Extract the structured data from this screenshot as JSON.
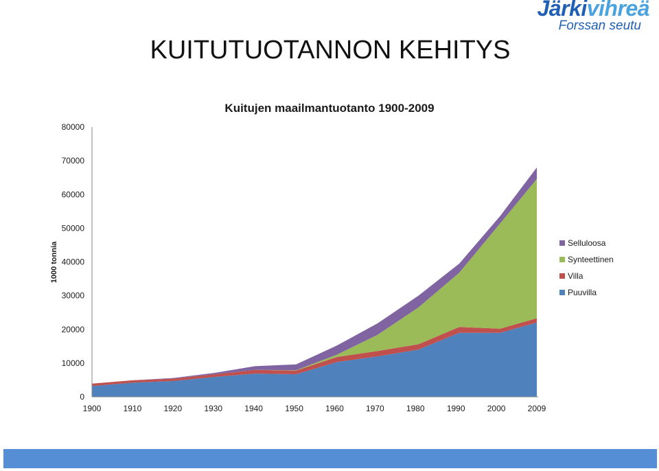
{
  "logo": {
    "part1": "Järki",
    "part2": "vihreä",
    "subtitle": "Forssan seutu"
  },
  "slide_title": "KUITUTUOTANNON KEHITYS",
  "chart_data": {
    "type": "area",
    "stacked": true,
    "title": "Kuitujen maailmantuotanto 1900-2009",
    "ylabel": "1000 tonnia",
    "xlabel": "",
    "categories": [
      "1900",
      "1910",
      "1920",
      "1930",
      "1940",
      "1950",
      "1960",
      "1970",
      "1980",
      "1990",
      "2000",
      "2009"
    ],
    "ylim": [
      0,
      80000
    ],
    "yticks": [
      0,
      10000,
      20000,
      30000,
      40000,
      50000,
      60000,
      70000,
      80000
    ],
    "legend_position": "right",
    "series": [
      {
        "name": "Puuvilla",
        "color": "#4f81bd",
        "values": [
          3200,
          4200,
          4700,
          5900,
          6900,
          6700,
          10300,
          12000,
          14000,
          19000,
          19000,
          22000
        ]
      },
      {
        "name": "Villa",
        "color": "#c0504d",
        "values": [
          700,
          700,
          700,
          800,
          1100,
          1100,
          1500,
          1600,
          1600,
          1700,
          1200,
          1300
        ]
      },
      {
        "name": "Synteettinen",
        "color": "#9bbb59",
        "values": [
          0,
          0,
          0,
          0,
          0,
          100,
          700,
          4800,
          10900,
          16100,
          31200,
          41300
        ]
      },
      {
        "name": "Selluloosa",
        "color": "#8064a2",
        "values": [
          0,
          0,
          200,
          400,
          1100,
          1700,
          2700,
          3400,
          3500,
          2700,
          2200,
          3400
        ]
      }
    ]
  }
}
